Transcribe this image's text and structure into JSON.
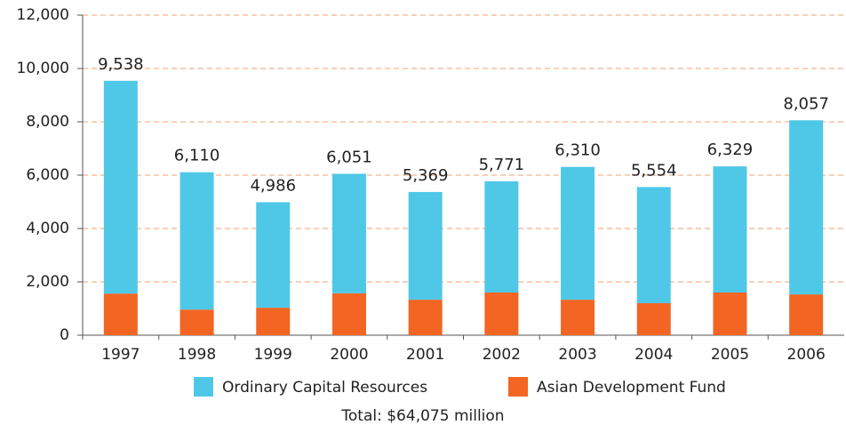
{
  "chart_data": {
    "type": "stacked_bar",
    "categories": [
      "1997",
      "1998",
      "1999",
      "2000",
      "2001",
      "2002",
      "2003",
      "2004",
      "2005",
      "2006"
    ],
    "series": [
      {
        "name": "Asian Development Fund",
        "color": "#f26522",
        "values": [
          1560,
          960,
          1030,
          1570,
          1330,
          1600,
          1330,
          1200,
          1600,
          1530
        ]
      },
      {
        "name": "Ordinary Capital Resources",
        "color": "#4fc8e8",
        "values": [
          7978,
          5150,
          3956,
          4481,
          4039,
          4171,
          4980,
          4354,
          4729,
          6527
        ]
      }
    ],
    "totals": [
      {
        "value": 9538,
        "label": "9,538"
      },
      {
        "value": 6110,
        "label": "6,110"
      },
      {
        "value": 4986,
        "label": "4,986"
      },
      {
        "value": 6051,
        "label": "6,051"
      },
      {
        "value": 5369,
        "label": "5,369"
      },
      {
        "value": 5771,
        "label": "5,771"
      },
      {
        "value": 6310,
        "label": "6,310"
      },
      {
        "value": 5554,
        "label": "5,554"
      },
      {
        "value": 6329,
        "label": "6,329"
      },
      {
        "value": 8057,
        "label": "8,057"
      }
    ],
    "ylim": [
      0,
      12000
    ],
    "yticks": [
      0,
      {
        "value": 2000,
        "label": "2,000"
      },
      {
        "value": 4000,
        "label": "4,000"
      },
      {
        "value": 6000,
        "label": "6,000"
      },
      {
        "value": 8000,
        "label": "8,000"
      },
      {
        "value": 10000,
        "label": "10,000"
      },
      {
        "value": 12000,
        "label": "12,000"
      }
    ],
    "grid": true,
    "note": "Total: $64,075 million"
  }
}
